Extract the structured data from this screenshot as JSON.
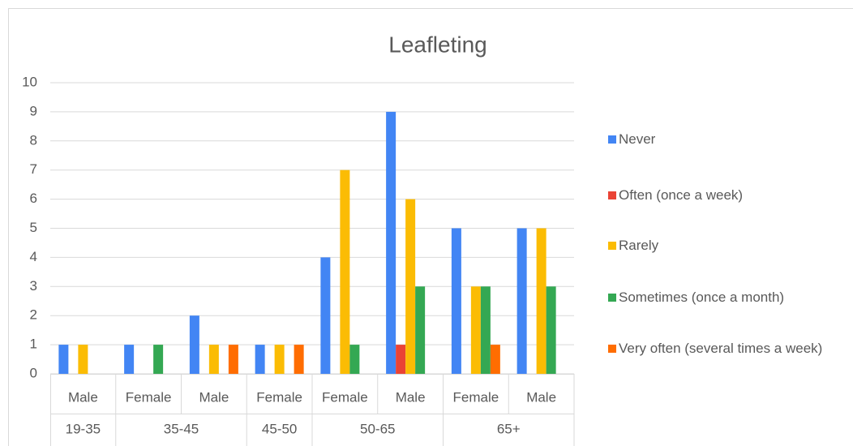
{
  "chart_data": {
    "type": "bar",
    "title": "Leafleting",
    "categories": [
      "Male",
      "Female",
      "Male",
      "Female",
      "Female",
      "Male",
      "Female",
      "Male"
    ],
    "category_groups": [
      {
        "name": "19-35",
        "count": 1
      },
      {
        "name": "35-45",
        "count": 2
      },
      {
        "name": "45-50",
        "count": 1
      },
      {
        "name": "50-65",
        "count": 2
      },
      {
        "name": "65+",
        "count": 2
      }
    ],
    "series": [
      {
        "name": "Never",
        "color": "#4285f4",
        "values": [
          1,
          1,
          2,
          1,
          4,
          9,
          5,
          5
        ]
      },
      {
        "name": "Often (once a week)",
        "color": "#ea4335",
        "values": [
          0,
          0,
          0,
          0,
          0,
          1,
          0,
          0
        ]
      },
      {
        "name": "Rarely",
        "color": "#fbbc04",
        "values": [
          1,
          0,
          1,
          1,
          7,
          6,
          3,
          5
        ]
      },
      {
        "name": "Sometimes (once a month)",
        "color": "#34a853",
        "values": [
          0,
          1,
          0,
          0,
          1,
          3,
          3,
          3
        ]
      },
      {
        "name": "Very often (several times a week)",
        "color": "#ff6d01",
        "values": [
          0,
          0,
          1,
          1,
          0,
          0,
          1,
          0
        ]
      }
    ],
    "ylim": [
      0,
      10
    ],
    "yticks": [
      0,
      1,
      2,
      3,
      4,
      5,
      6,
      7,
      8,
      9,
      10
    ],
    "grid": true,
    "legend": "right"
  }
}
